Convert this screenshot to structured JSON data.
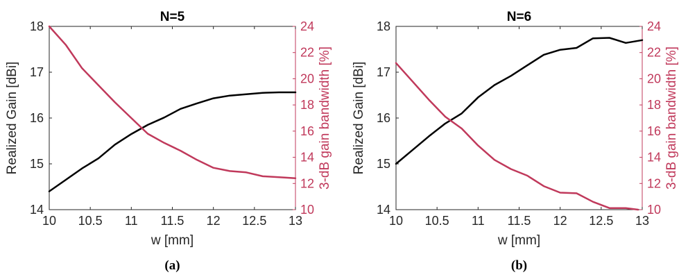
{
  "chart_data": [
    {
      "type": "line",
      "title": "N=5",
      "caption": "(a)",
      "xlabel": "w [mm]",
      "ylabel_left": "Realized Gain [dBi]",
      "ylabel_right": "3-dB gain bandwidth [%]",
      "xlim": [
        10,
        13
      ],
      "ylim_left": [
        14,
        18
      ],
      "ylim_right": [
        10,
        24
      ],
      "xticks": [
        "10",
        "10.5",
        "11",
        "11.5",
        "12",
        "12.5",
        "13"
      ],
      "yticks_left": [
        "14",
        "15",
        "16",
        "17",
        "18"
      ],
      "yticks_right": [
        "10",
        "12",
        "14",
        "16",
        "18",
        "20",
        "22",
        "24"
      ],
      "grid": false,
      "left_color": "#000000",
      "right_color": "#c0395b",
      "series": [
        {
          "axis": "left",
          "x": [
            10,
            10.2,
            10.4,
            10.6,
            10.8,
            11,
            11.2,
            11.4,
            11.6,
            11.8,
            12,
            12.2,
            12.4,
            12.6,
            12.8,
            13
          ],
          "values": [
            14.4,
            14.65,
            14.9,
            15.12,
            15.42,
            15.65,
            15.85,
            16.01,
            16.2,
            16.32,
            16.43,
            16.49,
            16.52,
            16.55,
            16.56,
            16.56
          ]
        },
        {
          "axis": "right",
          "x": [
            10,
            10.2,
            10.4,
            10.6,
            10.8,
            11,
            11.2,
            11.4,
            11.6,
            11.8,
            12,
            12.2,
            12.4,
            12.6,
            12.8,
            13
          ],
          "values": [
            24,
            22.6,
            20.8,
            19.5,
            18.2,
            17,
            15.8,
            15.1,
            14.5,
            13.8,
            13.2,
            12.95,
            12.85,
            12.55,
            12.48,
            12.4
          ]
        }
      ]
    },
    {
      "type": "line",
      "title": "N=6",
      "caption": "(b)",
      "xlabel": "w [mm]",
      "ylabel_left": "Realized Gain [dBi]",
      "ylabel_right": "3-dB gain bandwidth [%]",
      "xlim": [
        10,
        13
      ],
      "ylim_left": [
        14,
        18
      ],
      "ylim_right": [
        10,
        24
      ],
      "xticks": [
        "10",
        "10.5",
        "11",
        "11.5",
        "12",
        "12.5",
        "13"
      ],
      "yticks_left": [
        "14",
        "15",
        "16",
        "17",
        "18"
      ],
      "yticks_right": [
        "10",
        "12",
        "14",
        "16",
        "18",
        "20",
        "22",
        "24"
      ],
      "grid": false,
      "left_color": "#000000",
      "right_color": "#c0395b",
      "series": [
        {
          "axis": "left",
          "x": [
            10,
            10.2,
            10.4,
            10.6,
            10.8,
            11,
            11.2,
            11.4,
            11.6,
            11.8,
            12,
            12.2,
            12.4,
            12.6,
            12.8,
            13
          ],
          "values": [
            15,
            15.3,
            15.6,
            15.88,
            16.1,
            16.45,
            16.72,
            16.92,
            17.15,
            17.38,
            17.49,
            17.53,
            17.74,
            17.75,
            17.64,
            17.7
          ]
        },
        {
          "axis": "right",
          "x": [
            10,
            10.2,
            10.4,
            10.6,
            10.8,
            11,
            11.2,
            11.4,
            11.6,
            11.8,
            12,
            12.2,
            12.4,
            12.6,
            12.8,
            12.95
          ],
          "values": [
            21.2,
            19.8,
            18.4,
            17.1,
            16.2,
            14.9,
            13.8,
            13.1,
            12.6,
            11.8,
            11.3,
            11.25,
            10.6,
            10.12,
            10.12,
            10
          ]
        }
      ]
    }
  ]
}
